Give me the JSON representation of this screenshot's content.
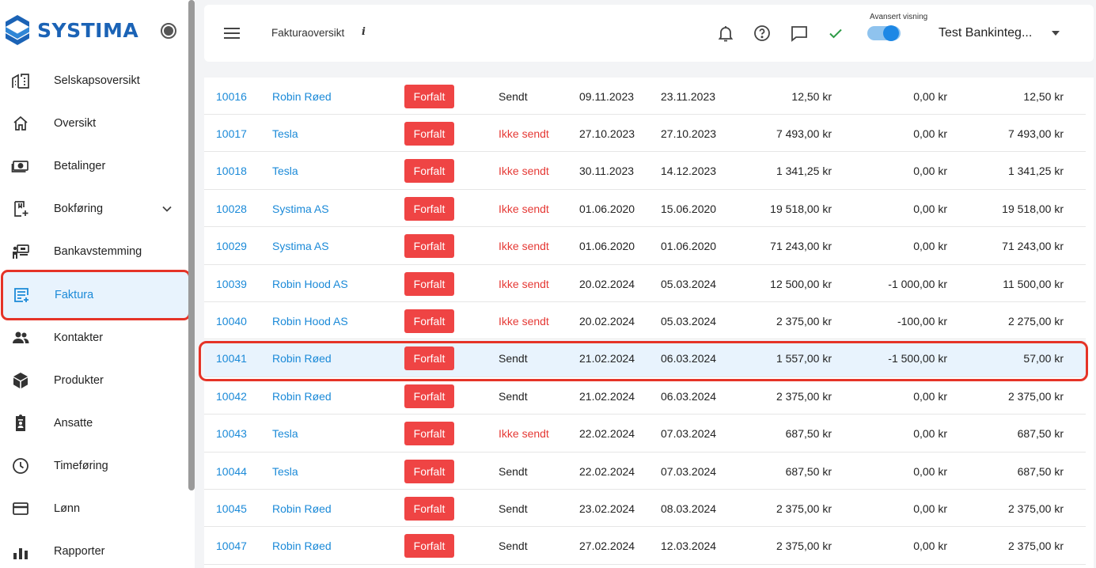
{
  "brand": {
    "name": "SYSTIMA",
    "accent": "#1b63b6",
    "highlight": "#e53327"
  },
  "sidebar": {
    "items": [
      {
        "label": "Selskapsoversikt",
        "icon": "buildings-icon"
      },
      {
        "label": "Oversikt",
        "icon": "home-icon"
      },
      {
        "label": "Betalinger",
        "icon": "banknote-icon"
      },
      {
        "label": "Bokføring",
        "icon": "ledger-icon",
        "expandable": true
      },
      {
        "label": "Bankavstemming",
        "icon": "bank-reconcile-icon"
      },
      {
        "label": "Faktura",
        "icon": "invoice-icon",
        "active": true
      },
      {
        "label": "Kontakter",
        "icon": "people-icon"
      },
      {
        "label": "Produkter",
        "icon": "box-icon"
      },
      {
        "label": "Ansatte",
        "icon": "clipboard-icon"
      },
      {
        "label": "Timeføring",
        "icon": "clock-icon"
      },
      {
        "label": "Lønn",
        "icon": "card-icon"
      },
      {
        "label": "Rapporter",
        "icon": "chart-icon"
      }
    ]
  },
  "header": {
    "title": "Fakturaoversikt",
    "info": "i",
    "advanced_label": "Avansert visning",
    "advanced_on": true,
    "company": "Test Bankinteg..."
  },
  "table": {
    "rows": [
      {
        "id": "10016",
        "customer": "Robin Røed",
        "status": "Forfalt",
        "sent": "Sendt",
        "sent_ok": true,
        "date": "09.11.2023",
        "due": "23.11.2023",
        "amount": "12,50 kr",
        "credited": "0,00 kr",
        "remaining": "12,50 kr"
      },
      {
        "id": "10017",
        "customer": "Tesla",
        "status": "Forfalt",
        "sent": "Ikke sendt",
        "sent_ok": false,
        "date": "27.10.2023",
        "due": "27.10.2023",
        "amount": "7 493,00 kr",
        "credited": "0,00 kr",
        "remaining": "7 493,00 kr"
      },
      {
        "id": "10018",
        "customer": "Tesla",
        "status": "Forfalt",
        "sent": "Ikke sendt",
        "sent_ok": false,
        "date": "30.11.2023",
        "due": "14.12.2023",
        "amount": "1 341,25 kr",
        "credited": "0,00 kr",
        "remaining": "1 341,25 kr"
      },
      {
        "id": "10028",
        "customer": "Systima AS",
        "status": "Forfalt",
        "sent": "Ikke sendt",
        "sent_ok": false,
        "date": "01.06.2020",
        "due": "15.06.2020",
        "amount": "19 518,00 kr",
        "credited": "0,00 kr",
        "remaining": "19 518,00 kr"
      },
      {
        "id": "10029",
        "customer": "Systima AS",
        "status": "Forfalt",
        "sent": "Ikke sendt",
        "sent_ok": false,
        "date": "01.06.2020",
        "due": "01.06.2020",
        "amount": "71 243,00 kr",
        "credited": "0,00 kr",
        "remaining": "71 243,00 kr"
      },
      {
        "id": "10039",
        "customer": "Robin Hood AS",
        "status": "Forfalt",
        "sent": "Ikke sendt",
        "sent_ok": false,
        "date": "20.02.2024",
        "due": "05.03.2024",
        "amount": "12 500,00 kr",
        "credited": "-1 000,00 kr",
        "remaining": "11 500,00 kr"
      },
      {
        "id": "10040",
        "customer": "Robin Hood AS",
        "status": "Forfalt",
        "sent": "Ikke sendt",
        "sent_ok": false,
        "date": "20.02.2024",
        "due": "05.03.2024",
        "amount": "2 375,00 kr",
        "credited": "-100,00 kr",
        "remaining": "2 275,00 kr"
      },
      {
        "id": "10041",
        "customer": "Robin Røed",
        "status": "Forfalt",
        "sent": "Sendt",
        "sent_ok": true,
        "date": "21.02.2024",
        "due": "06.03.2024",
        "amount": "1 557,00 kr",
        "credited": "-1 500,00 kr",
        "remaining": "57,00 kr",
        "highlighted": true
      },
      {
        "id": "10042",
        "customer": "Robin Røed",
        "status": "Forfalt",
        "sent": "Sendt",
        "sent_ok": true,
        "date": "21.02.2024",
        "due": "06.03.2024",
        "amount": "2 375,00 kr",
        "credited": "0,00 kr",
        "remaining": "2 375,00 kr"
      },
      {
        "id": "10043",
        "customer": "Tesla",
        "status": "Forfalt",
        "sent": "Ikke sendt",
        "sent_ok": false,
        "date": "22.02.2024",
        "due": "07.03.2024",
        "amount": "687,50 kr",
        "credited": "0,00 kr",
        "remaining": "687,50 kr"
      },
      {
        "id": "10044",
        "customer": "Tesla",
        "status": "Forfalt",
        "sent": "Sendt",
        "sent_ok": true,
        "date": "22.02.2024",
        "due": "07.03.2024",
        "amount": "687,50 kr",
        "credited": "0,00 kr",
        "remaining": "687,50 kr"
      },
      {
        "id": "10045",
        "customer": "Robin Røed",
        "status": "Forfalt",
        "sent": "Sendt",
        "sent_ok": true,
        "date": "23.02.2024",
        "due": "08.03.2024",
        "amount": "2 375,00 kr",
        "credited": "0,00 kr",
        "remaining": "2 375,00 kr"
      },
      {
        "id": "10047",
        "customer": "Robin Røed",
        "status": "Forfalt",
        "sent": "Sendt",
        "sent_ok": true,
        "date": "27.02.2024",
        "due": "12.03.2024",
        "amount": "2 375,00 kr",
        "credited": "0,00 kr",
        "remaining": "2 375,00 kr"
      }
    ]
  }
}
